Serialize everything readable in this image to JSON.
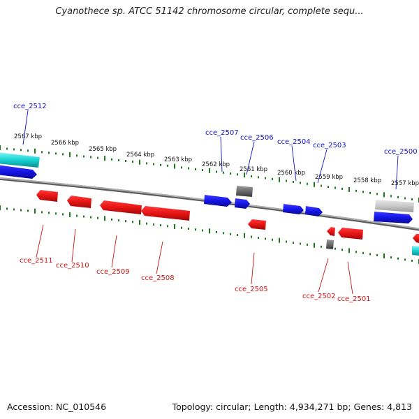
{
  "title": "Cyanothece sp. ATCC 51142 chromosome circular, complete sequ...",
  "footer": {
    "accession": "Accession: NC_010546",
    "summary": "Topology: circular; Length: 4,934,271 bp; Genes: 4,813"
  },
  "colors": {
    "forward": "#1414e6",
    "reverse": "#e61414",
    "rna": "#808080",
    "pseudo": "#18d2d2",
    "backbone": "#909090",
    "tick_fwd": "#1a7a1a"
  },
  "kbp_labels": [
    "2567 kbp",
    "2566 kbp",
    "2565 kbp",
    "2564 kbp",
    "2563 kbp",
    "2562 kbp",
    "2561 kbp",
    "2560 kbp",
    "2559 kbp",
    "2558 kbp",
    "2557 kbp"
  ],
  "genes": {
    "forward": [
      "cce_2512",
      "cce_2507",
      "cce_2506",
      "cce_2504",
      "cce_2503",
      "cce_2500"
    ],
    "reverse": [
      "cce_2511",
      "cce_2510",
      "cce_2509",
      "cce_2508",
      "cce_2505",
      "cce_2502",
      "cce_2501"
    ]
  }
}
